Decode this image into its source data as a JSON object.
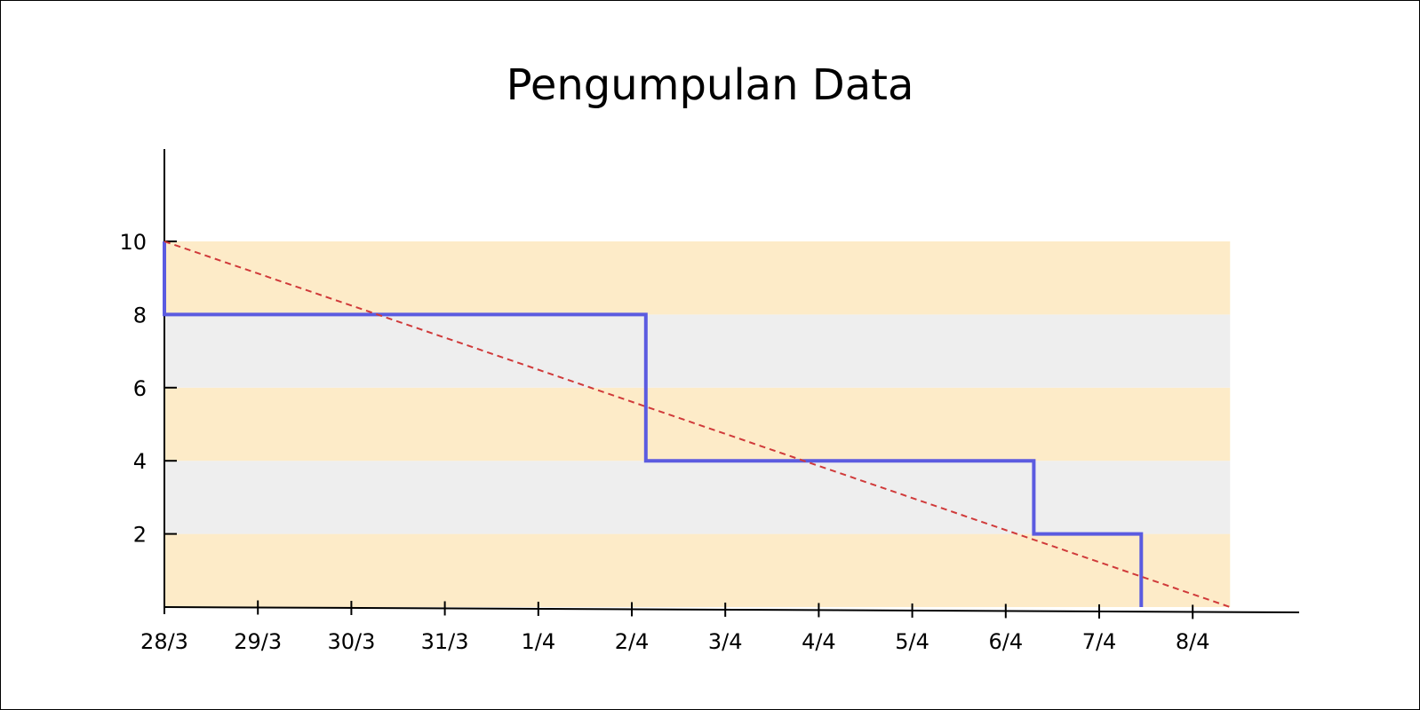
{
  "chart_data": {
    "type": "line",
    "title": "Pengumpulan Data",
    "xlabel": "",
    "ylabel": "",
    "x_tick_labels": [
      "28/3",
      "29/3",
      "30/3",
      "31/3",
      "1/4",
      "2/4",
      "3/4",
      "4/4",
      "5/4",
      "6/4",
      "7/4",
      "8/4"
    ],
    "y_ticks": [
      2,
      4,
      6,
      8,
      10
    ],
    "ylim": [
      0,
      12.5
    ],
    "xlim": [
      0,
      12.5
    ],
    "grid": false,
    "bands": [
      {
        "from": 0,
        "to": 2,
        "color": "#fdebc8"
      },
      {
        "from": 2,
        "to": 4,
        "color": "#eeeeee"
      },
      {
        "from": 4,
        "to": 6,
        "color": "#fdebc8"
      },
      {
        "from": 6,
        "to": 8,
        "color": "#eeeeee"
      },
      {
        "from": 8,
        "to": 10,
        "color": "#fdebc8"
      }
    ],
    "series": [
      {
        "style": "solid",
        "color": "#5b5be0",
        "points": [
          [
            0,
            10
          ],
          [
            0,
            8
          ],
          [
            5.15,
            8
          ],
          [
            5.15,
            4
          ],
          [
            9.3,
            4
          ],
          [
            9.3,
            2
          ],
          [
            10.45,
            2
          ],
          [
            10.45,
            0
          ]
        ]
      },
      {
        "style": "dashed",
        "color": "#d03a3a",
        "points": [
          [
            0,
            10
          ],
          [
            11.4,
            0
          ]
        ]
      }
    ]
  }
}
